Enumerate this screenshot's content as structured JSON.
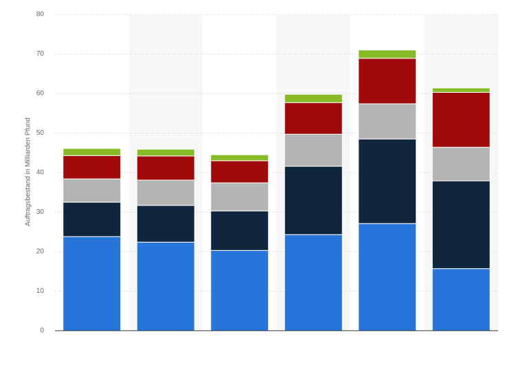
{
  "chart_data": {
    "type": "stacked-bar",
    "y_label": "Auftragsbestand in Milliarden Pfund",
    "categories": [
      null,
      null,
      null,
      null,
      null,
      null
    ],
    "series": [
      {
        "color": "#2775da",
        "values": [
          23.8,
          22.4,
          20.3,
          24.3,
          27.1,
          15.7
        ]
      },
      {
        "color": "#10263e",
        "values": [
          8.7,
          9.3,
          10.0,
          17.3,
          21.4,
          22.2
        ]
      },
      {
        "color": "#b4b4b4",
        "values": [
          5.9,
          6.4,
          7.1,
          8.1,
          8.9,
          8.5
        ]
      },
      {
        "color": "#a10a0a",
        "values": [
          5.9,
          6.1,
          5.6,
          8.0,
          11.5,
          13.9
        ]
      },
      {
        "color": "#86bb25",
        "values": [
          1.8,
          1.7,
          1.5,
          2.1,
          2.1,
          1.1
        ]
      }
    ],
    "ylim": [
      0,
      80
    ],
    "yticks": [
      0,
      10,
      20,
      30,
      40,
      50,
      60,
      70,
      80
    ],
    "grid": true
  }
}
